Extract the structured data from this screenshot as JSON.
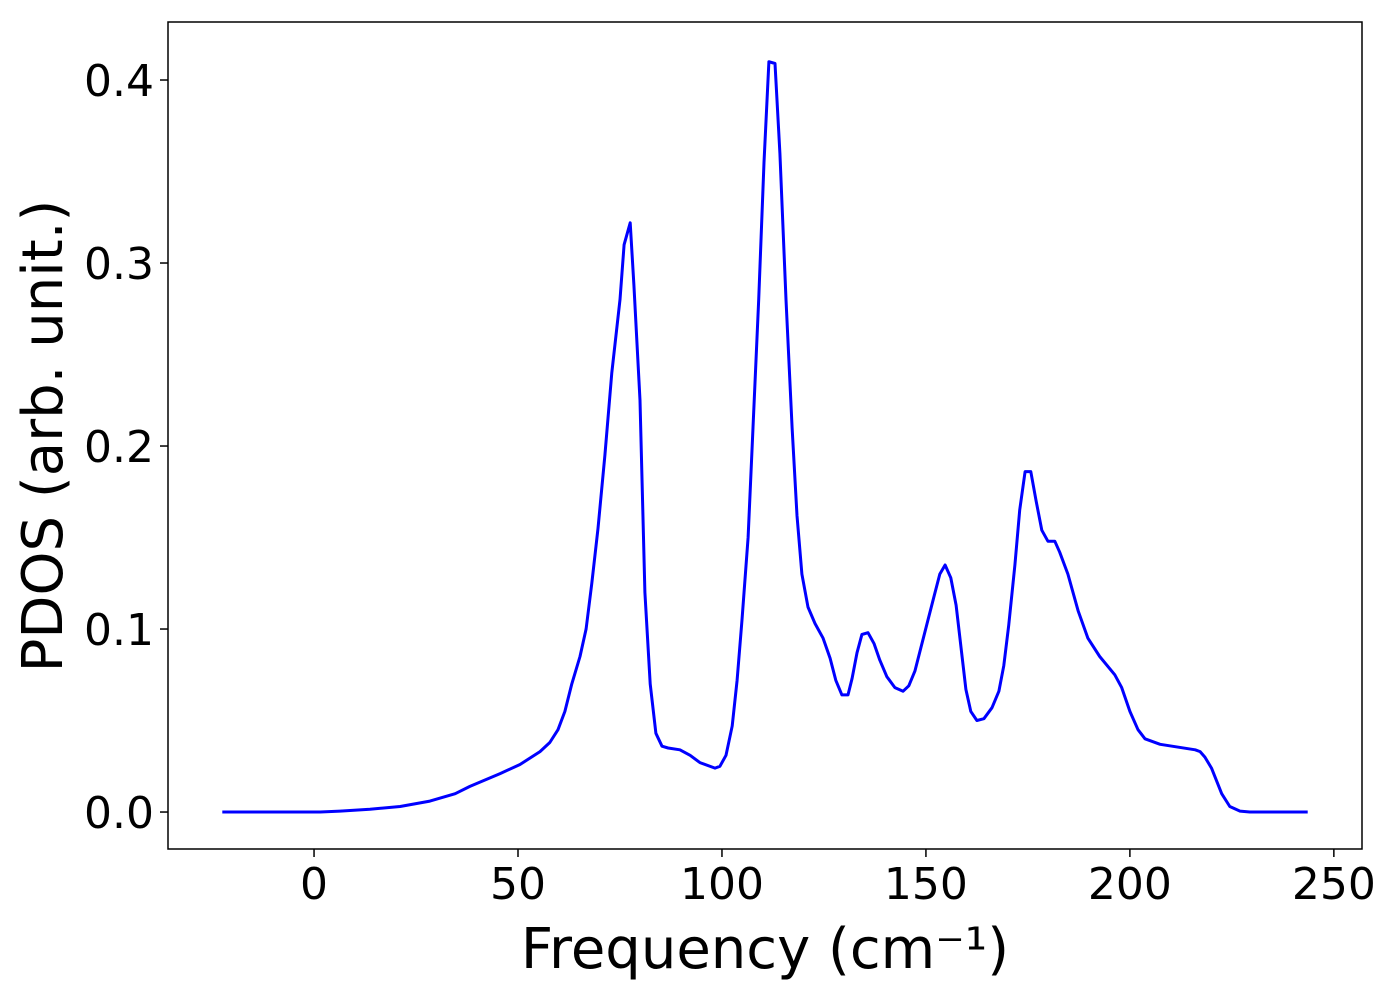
{
  "chart_data": {
    "type": "line",
    "xlabel": "Frequency (cm⁻¹)",
    "ylabel": "PDOS (arb. unit.)",
    "xlim": [
      -35.8,
      256.9
    ],
    "ylim": [
      -0.0202,
      0.4317
    ],
    "xticks": [
      0,
      50,
      100,
      150,
      200,
      250
    ],
    "yticks": [
      {
        "value": 0,
        "label": "0.0"
      },
      0.1,
      0.2,
      0.3,
      0.4
    ],
    "grid": false,
    "x": [
      -22.5,
      1.5,
      6.4,
      13.7,
      21.1,
      28.4,
      34.6,
      38.2,
      45.6,
      50.5,
      55.4,
      57.8,
      59.8,
      61.5,
      63.2,
      65.2,
      66.7,
      68.1,
      69.6,
      71.3,
      73,
      75,
      76,
      77.5,
      78.4,
      79.9,
      81.1,
      82.4,
      83.8,
      85.3,
      86.8,
      89.7,
      92.2,
      94.6,
      98.3,
      99.5,
      101,
      102.5,
      103.7,
      104.9,
      106.4,
      107.6,
      109,
      110.3,
      111.5,
      113,
      114.2,
      115.7,
      117.2,
      118.4,
      119.6,
      121.1,
      122.8,
      124.8,
      126.5,
      127.9,
      129.4,
      130.9,
      131.9,
      133.1,
      134.3,
      135.8,
      137.3,
      138.7,
      140.4,
      142.4,
      144.4,
      145.8,
      147.3,
      148.8,
      150.5,
      152,
      153.4,
      154.7,
      156.1,
      157.4,
      158.6,
      159.8,
      161,
      162.5,
      164.2,
      166.2,
      167.9,
      169.1,
      170.3,
      171.8,
      173,
      174.3,
      175.7,
      177,
      178.4,
      179.9,
      181.6,
      182.8,
      184.8,
      187.3,
      189.7,
      192.6,
      196.3,
      198,
      200,
      202,
      203.7,
      207.4,
      216,
      217.2,
      218.4,
      220,
      222.5,
      224.5,
      227,
      229.4,
      243.6
    ],
    "series": [
      {
        "name": "PDOS",
        "color": "#0000ff",
        "values": [
          0,
          0,
          0.0005,
          0.0015,
          0.003,
          0.006,
          0.01,
          0.014,
          0.021,
          0.026,
          0.033,
          0.038,
          0.045,
          0.055,
          0.07,
          0.085,
          0.1,
          0.125,
          0.155,
          0.195,
          0.24,
          0.28,
          0.31,
          0.322,
          0.288,
          0.225,
          0.12,
          0.07,
          0.043,
          0.036,
          0.035,
          0.034,
          0.031,
          0.027,
          0.024,
          0.025,
          0.031,
          0.047,
          0.072,
          0.105,
          0.15,
          0.21,
          0.28,
          0.355,
          0.41,
          0.409,
          0.36,
          0.28,
          0.21,
          0.162,
          0.13,
          0.112,
          0.103,
          0.095,
          0.084,
          0.072,
          0.064,
          0.064,
          0.073,
          0.087,
          0.097,
          0.098,
          0.092,
          0.083,
          0.074,
          0.068,
          0.066,
          0.069,
          0.077,
          0.09,
          0.105,
          0.118,
          0.13,
          0.135,
          0.128,
          0.113,
          0.09,
          0.067,
          0.055,
          0.05,
          0.051,
          0.057,
          0.066,
          0.08,
          0.102,
          0.135,
          0.165,
          0.186,
          0.186,
          0.17,
          0.154,
          0.148,
          0.148,
          0.142,
          0.13,
          0.11,
          0.095,
          0.085,
          0.075,
          0.068,
          0.055,
          0.045,
          0.04,
          0.037,
          0.034,
          0.033,
          0.03,
          0.024,
          0.01,
          0.003,
          0.0005,
          0,
          0
        ]
      }
    ]
  }
}
